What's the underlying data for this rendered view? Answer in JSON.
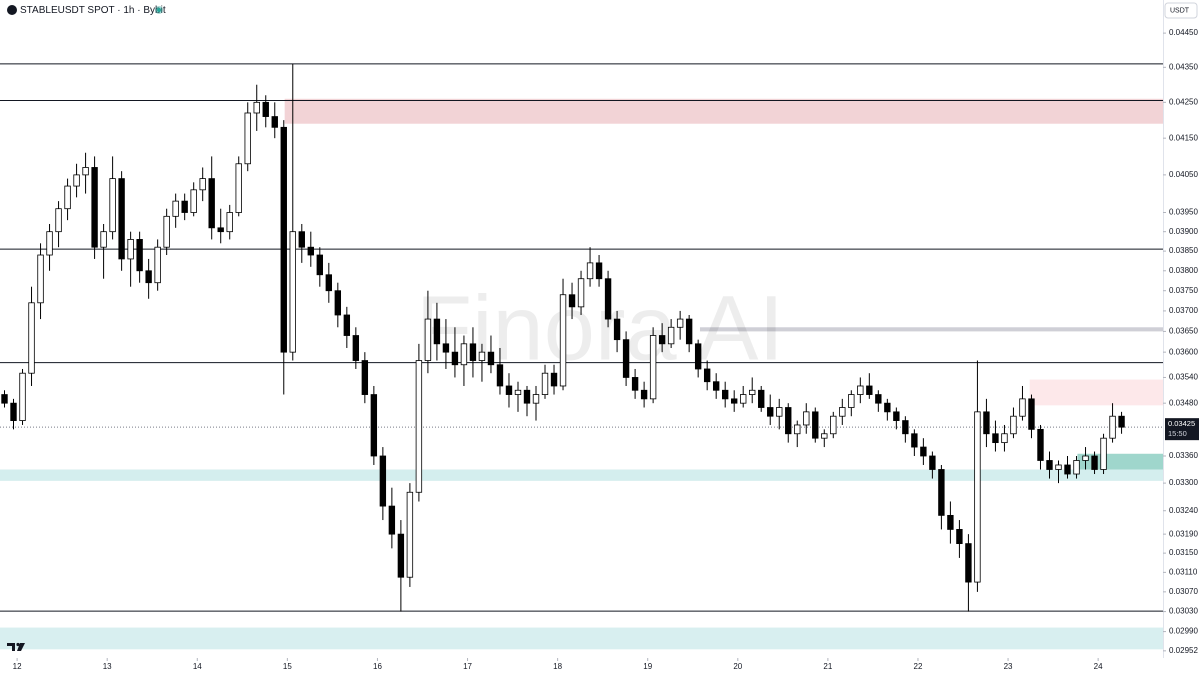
{
  "chart_data": {
    "type": "candlestick",
    "title": "STABLEUSDT SPOT · 1h · Bybit",
    "currency": "USDT",
    "watermark": "Finora AI",
    "log_scale": true,
    "grid": false,
    "up_color": "#ffffff",
    "down_color": "#000000",
    "xlim": [
      11.81,
      24.72
    ],
    "xticks": [
      12,
      13,
      14,
      15,
      16,
      17,
      18,
      19,
      20,
      21,
      22,
      23,
      24
    ],
    "ylim": [
      0.02938,
      0.04549
    ],
    "yticks": [
      {
        "value": 0.0445,
        "label": "0.04450"
      },
      {
        "value": 0.0435,
        "label": "0.04350"
      },
      {
        "value": 0.0425,
        "label": "0.04250"
      },
      {
        "value": 0.0415,
        "label": "0.04150"
      },
      {
        "value": 0.0405,
        "label": "0.04050"
      },
      {
        "value": 0.0395,
        "label": "0.03950"
      },
      {
        "value": 0.039,
        "label": "0.03900"
      },
      {
        "value": 0.0385,
        "label": "0.03850"
      },
      {
        "value": 0.038,
        "label": "0.03800"
      },
      {
        "value": 0.0375,
        "label": "0.03750"
      },
      {
        "value": 0.037,
        "label": "0.03700"
      },
      {
        "value": 0.0365,
        "label": "0.03650"
      },
      {
        "value": 0.036,
        "label": "0.03600"
      },
      {
        "value": 0.0354,
        "label": "0.03540"
      },
      {
        "value": 0.0348,
        "label": "0.03480"
      },
      {
        "value": 0.0336,
        "label": "0.03360"
      },
      {
        "value": 0.033,
        "label": "0.03300"
      },
      {
        "value": 0.0324,
        "label": "0.03240"
      },
      {
        "value": 0.0319,
        "label": "0.03190"
      },
      {
        "value": 0.0315,
        "label": "0.03150"
      },
      {
        "value": 0.0311,
        "label": "0.03110"
      },
      {
        "value": 0.0307,
        "label": "0.03070"
      },
      {
        "value": 0.0303,
        "label": "0.03030"
      },
      {
        "value": 0.0299,
        "label": "0.02990"
      },
      0.02952
    ],
    "levels": [
      0.0436,
      0.04255,
      0.03855,
      0.03575,
      0.03031
    ],
    "zones": [
      {
        "x_from": 14.97,
        "from": 0.0426,
        "to": 0.0419,
        "color": "#f2d3d6"
      },
      {
        "x_from": 19.58,
        "from": 0.0366,
        "to": 0.0365,
        "color": "#cfcfd6"
      },
      {
        "x_from": 23.24,
        "from": 0.03535,
        "to": 0.03475,
        "color": "#fde8ea"
      },
      {
        "x_from": 23.77,
        "from": 0.03365,
        "to": 0.0331,
        "color": "#9fd6cc"
      },
      {
        "x_from": 11.81,
        "from": 0.0333,
        "to": 0.03305,
        "color": "#d4eeee"
      },
      {
        "x_from": 11.81,
        "from": 0.02998,
        "to": 0.02955,
        "color": "#d8eff0"
      }
    ],
    "last_price": 0.03425,
    "last_time": "15:50",
    "x": [
      11.86,
      11.96,
      12.06,
      12.16,
      12.26,
      12.36,
      12.46,
      12.56,
      12.66,
      12.76,
      12.86,
      12.96,
      13.06,
      13.16,
      13.26,
      13.36,
      13.46,
      13.56,
      13.66,
      13.76,
      13.86,
      13.96,
      14.06,
      14.16,
      14.26,
      14.36,
      14.46,
      14.56,
      14.66,
      14.76,
      14.86,
      14.96,
      15.06,
      15.16,
      15.26,
      15.36,
      15.46,
      15.56,
      15.66,
      15.76,
      15.86,
      15.96,
      16.06,
      16.16,
      16.26,
      16.36,
      16.46,
      16.56,
      16.66,
      16.76,
      16.86,
      16.96,
      17.06,
      17.16,
      17.26,
      17.36,
      17.46,
      17.56,
      17.66,
      17.76,
      17.86,
      17.96,
      18.06,
      18.16,
      18.26,
      18.36,
      18.46,
      18.56,
      18.66,
      18.76,
      18.86,
      18.96,
      19.06,
      19.16,
      19.26,
      19.36,
      19.46,
      19.56,
      19.66,
      19.76,
      19.86,
      19.96,
      20.06,
      20.16,
      20.26,
      20.36,
      20.46,
      20.56,
      20.66,
      20.76,
      20.86,
      20.96,
      21.06,
      21.16,
      21.26,
      21.36,
      21.46,
      21.56,
      21.66,
      21.76,
      21.86,
      21.96,
      22.06,
      22.16,
      22.26,
      22.36,
      22.46,
      22.56,
      22.66,
      22.76,
      22.86,
      22.96,
      23.06,
      23.16,
      23.26,
      23.36,
      23.46,
      23.56,
      23.66,
      23.76,
      23.86,
      23.96,
      24.06,
      24.16,
      24.26
    ],
    "open": [
      0.035,
      0.0348,
      0.0344,
      0.0355,
      0.0372,
      0.0384,
      0.039,
      0.0396,
      0.0402,
      0.0405,
      0.0407,
      0.0386,
      0.039,
      0.0404,
      0.0383,
      0.0388,
      0.038,
      0.0377,
      0.0386,
      0.0394,
      0.0398,
      0.0395,
      0.0401,
      0.0404,
      0.0391,
      0.039,
      0.0395,
      0.0408,
      0.0422,
      0.0425,
      0.0421,
      0.0418,
      0.036,
      0.039,
      0.0386,
      0.0384,
      0.0379,
      0.0375,
      0.0369,
      0.0364,
      0.0358,
      0.035,
      0.0336,
      0.0325,
      0.0319,
      0.031,
      0.0328,
      0.0358,
      0.0368,
      0.0362,
      0.036,
      0.0357,
      0.0362,
      0.0358,
      0.036,
      0.0357,
      0.0352,
      0.035,
      0.0351,
      0.0348,
      0.035,
      0.0355,
      0.0352,
      0.0374,
      0.0371,
      0.0378,
      0.0382,
      0.0378,
      0.0368,
      0.0363,
      0.0354,
      0.0351,
      0.0349,
      0.0364,
      0.0362,
      0.0366,
      0.0368,
      0.0362,
      0.0356,
      0.0353,
      0.0351,
      0.0349,
      0.0348,
      0.035,
      0.0351,
      0.0347,
      0.0345,
      0.0347,
      0.0341,
      0.0343,
      0.0346,
      0.034,
      0.0341,
      0.0345,
      0.0347,
      0.035,
      0.0352,
      0.035,
      0.0348,
      0.0346,
      0.0344,
      0.0341,
      0.0338,
      0.0336,
      0.0333,
      0.0323,
      0.032,
      0.0317,
      0.0309,
      0.0346,
      0.0341,
      0.0339,
      0.0341,
      0.0345,
      0.0349,
      0.0342,
      0.0335,
      0.0333,
      0.0334,
      0.0332,
      0.0335,
      0.0336,
      0.0333,
      0.034,
      0.0345
    ],
    "high": [
      0.0351,
      0.0349,
      0.0356,
      0.0376,
      0.0387,
      0.0392,
      0.0398,
      0.0404,
      0.0408,
      0.0411,
      0.041,
      0.0392,
      0.041,
      0.0406,
      0.039,
      0.039,
      0.0383,
      0.0388,
      0.0396,
      0.04,
      0.04,
      0.0403,
      0.0407,
      0.041,
      0.0396,
      0.0397,
      0.041,
      0.0425,
      0.043,
      0.0427,
      0.0425,
      0.042,
      0.0436,
      0.0392,
      0.039,
      0.0386,
      0.0382,
      0.0377,
      0.0371,
      0.0366,
      0.036,
      0.0352,
      0.0338,
      0.0329,
      0.0322,
      0.033,
      0.0362,
      0.0375,
      0.0372,
      0.0368,
      0.0366,
      0.0364,
      0.0366,
      0.0362,
      0.0364,
      0.0361,
      0.0355,
      0.0353,
      0.0352,
      0.0352,
      0.0357,
      0.0357,
      0.0378,
      0.0377,
      0.038,
      0.0386,
      0.0384,
      0.038,
      0.037,
      0.0365,
      0.0356,
      0.0353,
      0.0366,
      0.0367,
      0.0368,
      0.037,
      0.0369,
      0.0363,
      0.0358,
      0.0355,
      0.0353,
      0.0351,
      0.0352,
      0.0354,
      0.0352,
      0.035,
      0.0349,
      0.0348,
      0.0344,
      0.0348,
      0.0347,
      0.0342,
      0.0346,
      0.0349,
      0.0351,
      0.0354,
      0.0355,
      0.0351,
      0.0349,
      0.0347,
      0.0345,
      0.0342,
      0.034,
      0.0337,
      0.0334,
      0.0326,
      0.0322,
      0.0319,
      0.0358,
      0.0349,
      0.0344,
      0.0343,
      0.0347,
      0.0352,
      0.035,
      0.0343,
      0.0337,
      0.0335,
      0.0336,
      0.0336,
      0.0338,
      0.0337,
      0.0341,
      0.0348,
      0.0346
    ],
    "low": [
      0.0347,
      0.0342,
      0.0343,
      0.0352,
      0.0368,
      0.038,
      0.0386,
      0.0393,
      0.0399,
      0.04,
      0.0383,
      0.0378,
      0.0388,
      0.038,
      0.0376,
      0.0377,
      0.0373,
      0.0375,
      0.0384,
      0.0391,
      0.0393,
      0.0394,
      0.0398,
      0.0388,
      0.0387,
      0.0388,
      0.0394,
      0.0406,
      0.0417,
      0.0418,
      0.0415,
      0.035,
      0.0358,
      0.0382,
      0.0381,
      0.0376,
      0.0372,
      0.0366,
      0.0361,
      0.0356,
      0.0348,
      0.0334,
      0.0322,
      0.0316,
      0.0303,
      0.0308,
      0.0326,
      0.0355,
      0.0358,
      0.0356,
      0.0354,
      0.0352,
      0.0354,
      0.0353,
      0.0355,
      0.035,
      0.0347,
      0.0346,
      0.0345,
      0.0344,
      0.0349,
      0.035,
      0.0351,
      0.0368,
      0.0369,
      0.0376,
      0.0376,
      0.0366,
      0.036,
      0.0352,
      0.0349,
      0.0347,
      0.0348,
      0.036,
      0.0361,
      0.0363,
      0.036,
      0.0354,
      0.0351,
      0.0349,
      0.0347,
      0.0346,
      0.0347,
      0.0348,
      0.0346,
      0.0343,
      0.0342,
      0.0339,
      0.0338,
      0.0341,
      0.0339,
      0.0338,
      0.034,
      0.0343,
      0.0345,
      0.0348,
      0.0349,
      0.0346,
      0.0344,
      0.0342,
      0.0339,
      0.0336,
      0.0334,
      0.0331,
      0.032,
      0.0317,
      0.0314,
      0.0303,
      0.0307,
      0.0338,
      0.0337,
      0.0337,
      0.034,
      0.0344,
      0.034,
      0.0333,
      0.0331,
      0.033,
      0.0331,
      0.0331,
      0.0333,
      0.0332,
      0.0332,
      0.0339,
      0.0341
    ],
    "close": [
      0.0348,
      0.0344,
      0.0355,
      0.0372,
      0.0384,
      0.039,
      0.0396,
      0.0402,
      0.0405,
      0.0407,
      0.0386,
      0.039,
      0.0404,
      0.0383,
      0.0388,
      0.038,
      0.0377,
      0.0386,
      0.0394,
      0.0398,
      0.0395,
      0.0401,
      0.0404,
      0.0391,
      0.039,
      0.0395,
      0.0408,
      0.0422,
      0.0425,
      0.0421,
      0.0418,
      0.036,
      0.039,
      0.0386,
      0.0384,
      0.0379,
      0.0375,
      0.0369,
      0.0364,
      0.0358,
      0.035,
      0.0336,
      0.0325,
      0.0319,
      0.031,
      0.0328,
      0.0358,
      0.0368,
      0.0362,
      0.036,
      0.0357,
      0.0362,
      0.0358,
      0.036,
      0.0357,
      0.0352,
      0.035,
      0.0351,
      0.0348,
      0.035,
      0.0355,
      0.0352,
      0.0374,
      0.0371,
      0.0378,
      0.0382,
      0.0378,
      0.0368,
      0.0363,
      0.0354,
      0.0351,
      0.0349,
      0.0364,
      0.0362,
      0.0366,
      0.0368,
      0.0362,
      0.0356,
      0.0353,
      0.0351,
      0.0349,
      0.0348,
      0.035,
      0.0351,
      0.0347,
      0.0345,
      0.0347,
      0.0341,
      0.0343,
      0.0346,
      0.034,
      0.0341,
      0.0345,
      0.0347,
      0.035,
      0.0352,
      0.035,
      0.0348,
      0.0346,
      0.0344,
      0.0341,
      0.0338,
      0.0336,
      0.0333,
      0.0323,
      0.032,
      0.0317,
      0.0309,
      0.0346,
      0.0341,
      0.0339,
      0.0341,
      0.0345,
      0.0349,
      0.0342,
      0.0335,
      0.0333,
      0.0334,
      0.0332,
      0.0335,
      0.0336,
      0.0333,
      0.034,
      0.0345,
      0.03425
    ]
  }
}
